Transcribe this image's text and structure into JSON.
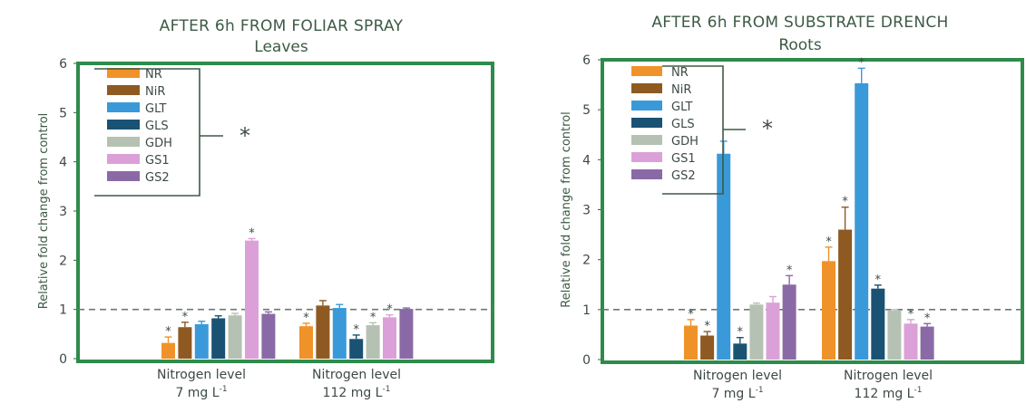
{
  "chart_data": [
    {
      "type": "bar",
      "title": "AFTER 6h FROM FOLIAR SPRAY",
      "subtitle": "Leaves",
      "ylabel": "Relative fold change from control",
      "ylim": [
        0,
        6
      ],
      "yticks": [
        "0",
        "1",
        "2",
        "3",
        "4",
        "5",
        "6"
      ],
      "reference_line": 1,
      "legend_marker": "*",
      "categories": [
        {
          "label": "Nitrogen level",
          "sublabel": "7 mg L",
          "sup": "-1"
        },
        {
          "label": "Nitrogen level",
          "sublabel": "112 mg L",
          "sup": "-1"
        }
      ],
      "series": [
        {
          "name": "NR",
          "color": "#f0922a",
          "values": [
            0.32,
            0.66
          ],
          "errors": [
            0.12,
            0.06
          ],
          "significant": [
            true,
            true
          ]
        },
        {
          "name": "NiR",
          "color": "#8e5a22",
          "values": [
            0.64,
            1.08
          ],
          "errors": [
            0.1,
            0.1
          ],
          "significant": [
            true,
            false
          ]
        },
        {
          "name": "GLT",
          "color": "#3a9ad9",
          "values": [
            0.7,
            1.03
          ],
          "errors": [
            0.06,
            0.07
          ],
          "significant": [
            false,
            false
          ]
        },
        {
          "name": "GLS",
          "color": "#1a5273",
          "values": [
            0.82,
            0.4
          ],
          "errors": [
            0.05,
            0.08
          ],
          "significant": [
            false,
            true
          ]
        },
        {
          "name": "GDH",
          "color": "#b5c2b3",
          "values": [
            0.88,
            0.68
          ],
          "errors": [
            0.04,
            0.05
          ],
          "significant": [
            false,
            true
          ]
        },
        {
          "name": "GS1",
          "color": "#dca0d8",
          "values": [
            2.4,
            0.84
          ],
          "errors": [
            0.04,
            0.05
          ],
          "significant": [
            true,
            true
          ]
        },
        {
          "name": "GS2",
          "color": "#8a6aa6",
          "values": [
            0.91,
            1.01
          ],
          "errors": [
            0.04,
            0.02
          ],
          "significant": [
            false,
            false
          ]
        }
      ]
    },
    {
      "type": "bar",
      "title": "AFTER 6h FROM SUBSTRATE DRENCH",
      "subtitle": "Roots",
      "ylabel": "Relative fold change from control",
      "ylim": [
        0,
        6
      ],
      "yticks": [
        "0",
        "1",
        "2",
        "3",
        "4",
        "5",
        "6"
      ],
      "reference_line": 1,
      "legend_marker": "*",
      "categories": [
        {
          "label": "Nitrogen level",
          "sublabel": "7 mg L",
          "sup": "-1"
        },
        {
          "label": "Nitrogen level",
          "sublabel": "112 mg L",
          "sup": "-1"
        }
      ],
      "series": [
        {
          "name": "NR",
          "color": "#f0922a",
          "values": [
            0.68,
            1.97
          ],
          "errors": [
            0.12,
            0.28
          ],
          "significant": [
            true,
            true
          ]
        },
        {
          "name": "NiR",
          "color": "#8e5a22",
          "values": [
            0.48,
            2.6
          ],
          "errors": [
            0.08,
            0.45
          ],
          "significant": [
            true,
            true
          ]
        },
        {
          "name": "GLT",
          "color": "#3a9ad9",
          "values": [
            4.12,
            5.53
          ],
          "errors": [
            0.25,
            0.3
          ],
          "significant": [
            false,
            true
          ]
        },
        {
          "name": "GLS",
          "color": "#1a5273",
          "values": [
            0.32,
            1.42
          ],
          "errors": [
            0.12,
            0.07
          ],
          "significant": [
            true,
            true
          ]
        },
        {
          "name": "GDH",
          "color": "#b5c2b3",
          "values": [
            1.1,
            0.98
          ],
          "errors": [
            0.03,
            0.02
          ],
          "significant": [
            false,
            false
          ]
        },
        {
          "name": "GS1",
          "color": "#dca0d8",
          "values": [
            1.14,
            0.72
          ],
          "errors": [
            0.12,
            0.08
          ],
          "significant": [
            false,
            true
          ]
        },
        {
          "name": "GS2",
          "color": "#8a6aa6",
          "values": [
            1.5,
            0.66
          ],
          "errors": [
            0.18,
            0.06
          ],
          "significant": [
            true,
            true
          ]
        }
      ]
    }
  ]
}
